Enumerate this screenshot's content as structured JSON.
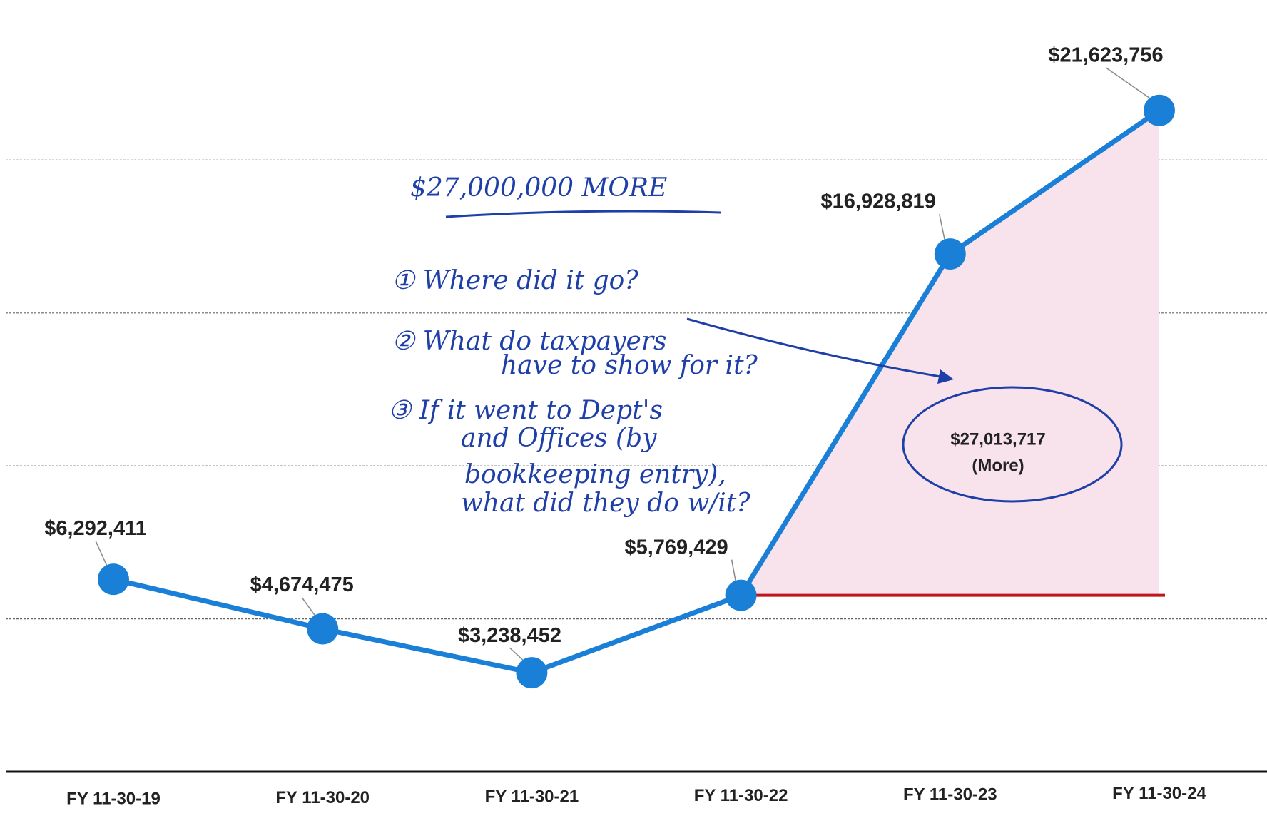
{
  "chart_data": {
    "type": "line",
    "categories": [
      "FY 11-30-19",
      "FY 11-30-20",
      "FY 11-30-21",
      "FY 11-30-22",
      "FY 11-30-23",
      "FY 11-30-24"
    ],
    "values": [
      6292411,
      4674475,
      3238452,
      5769429,
      16928819,
      21623756
    ],
    "value_labels": [
      "$6,292,411",
      "$4,674,475",
      "$3,238,452",
      "$5,769,429",
      "$16,928,819",
      "$21,623,756"
    ],
    "color": "#1a7fd6",
    "ylim": [
      0,
      25000000
    ],
    "yticks": [
      0,
      5000000,
      10000000,
      15000000,
      20000000
    ],
    "grid": true,
    "shade": {
      "start": 3,
      "fill": "#f8e3ec",
      "baseline_color": "#c0141e"
    },
    "annotations": [
      "$27,000,000 MORE",
      "① Where did it go?",
      "② What do taxpayers",
      "have to show for it?",
      "③ If it went to Dept's",
      "and Offices (by",
      "bookkeeping entry),",
      "what did they do w/it?"
    ],
    "callout": [
      "$27,013,717",
      "(More)"
    ]
  }
}
